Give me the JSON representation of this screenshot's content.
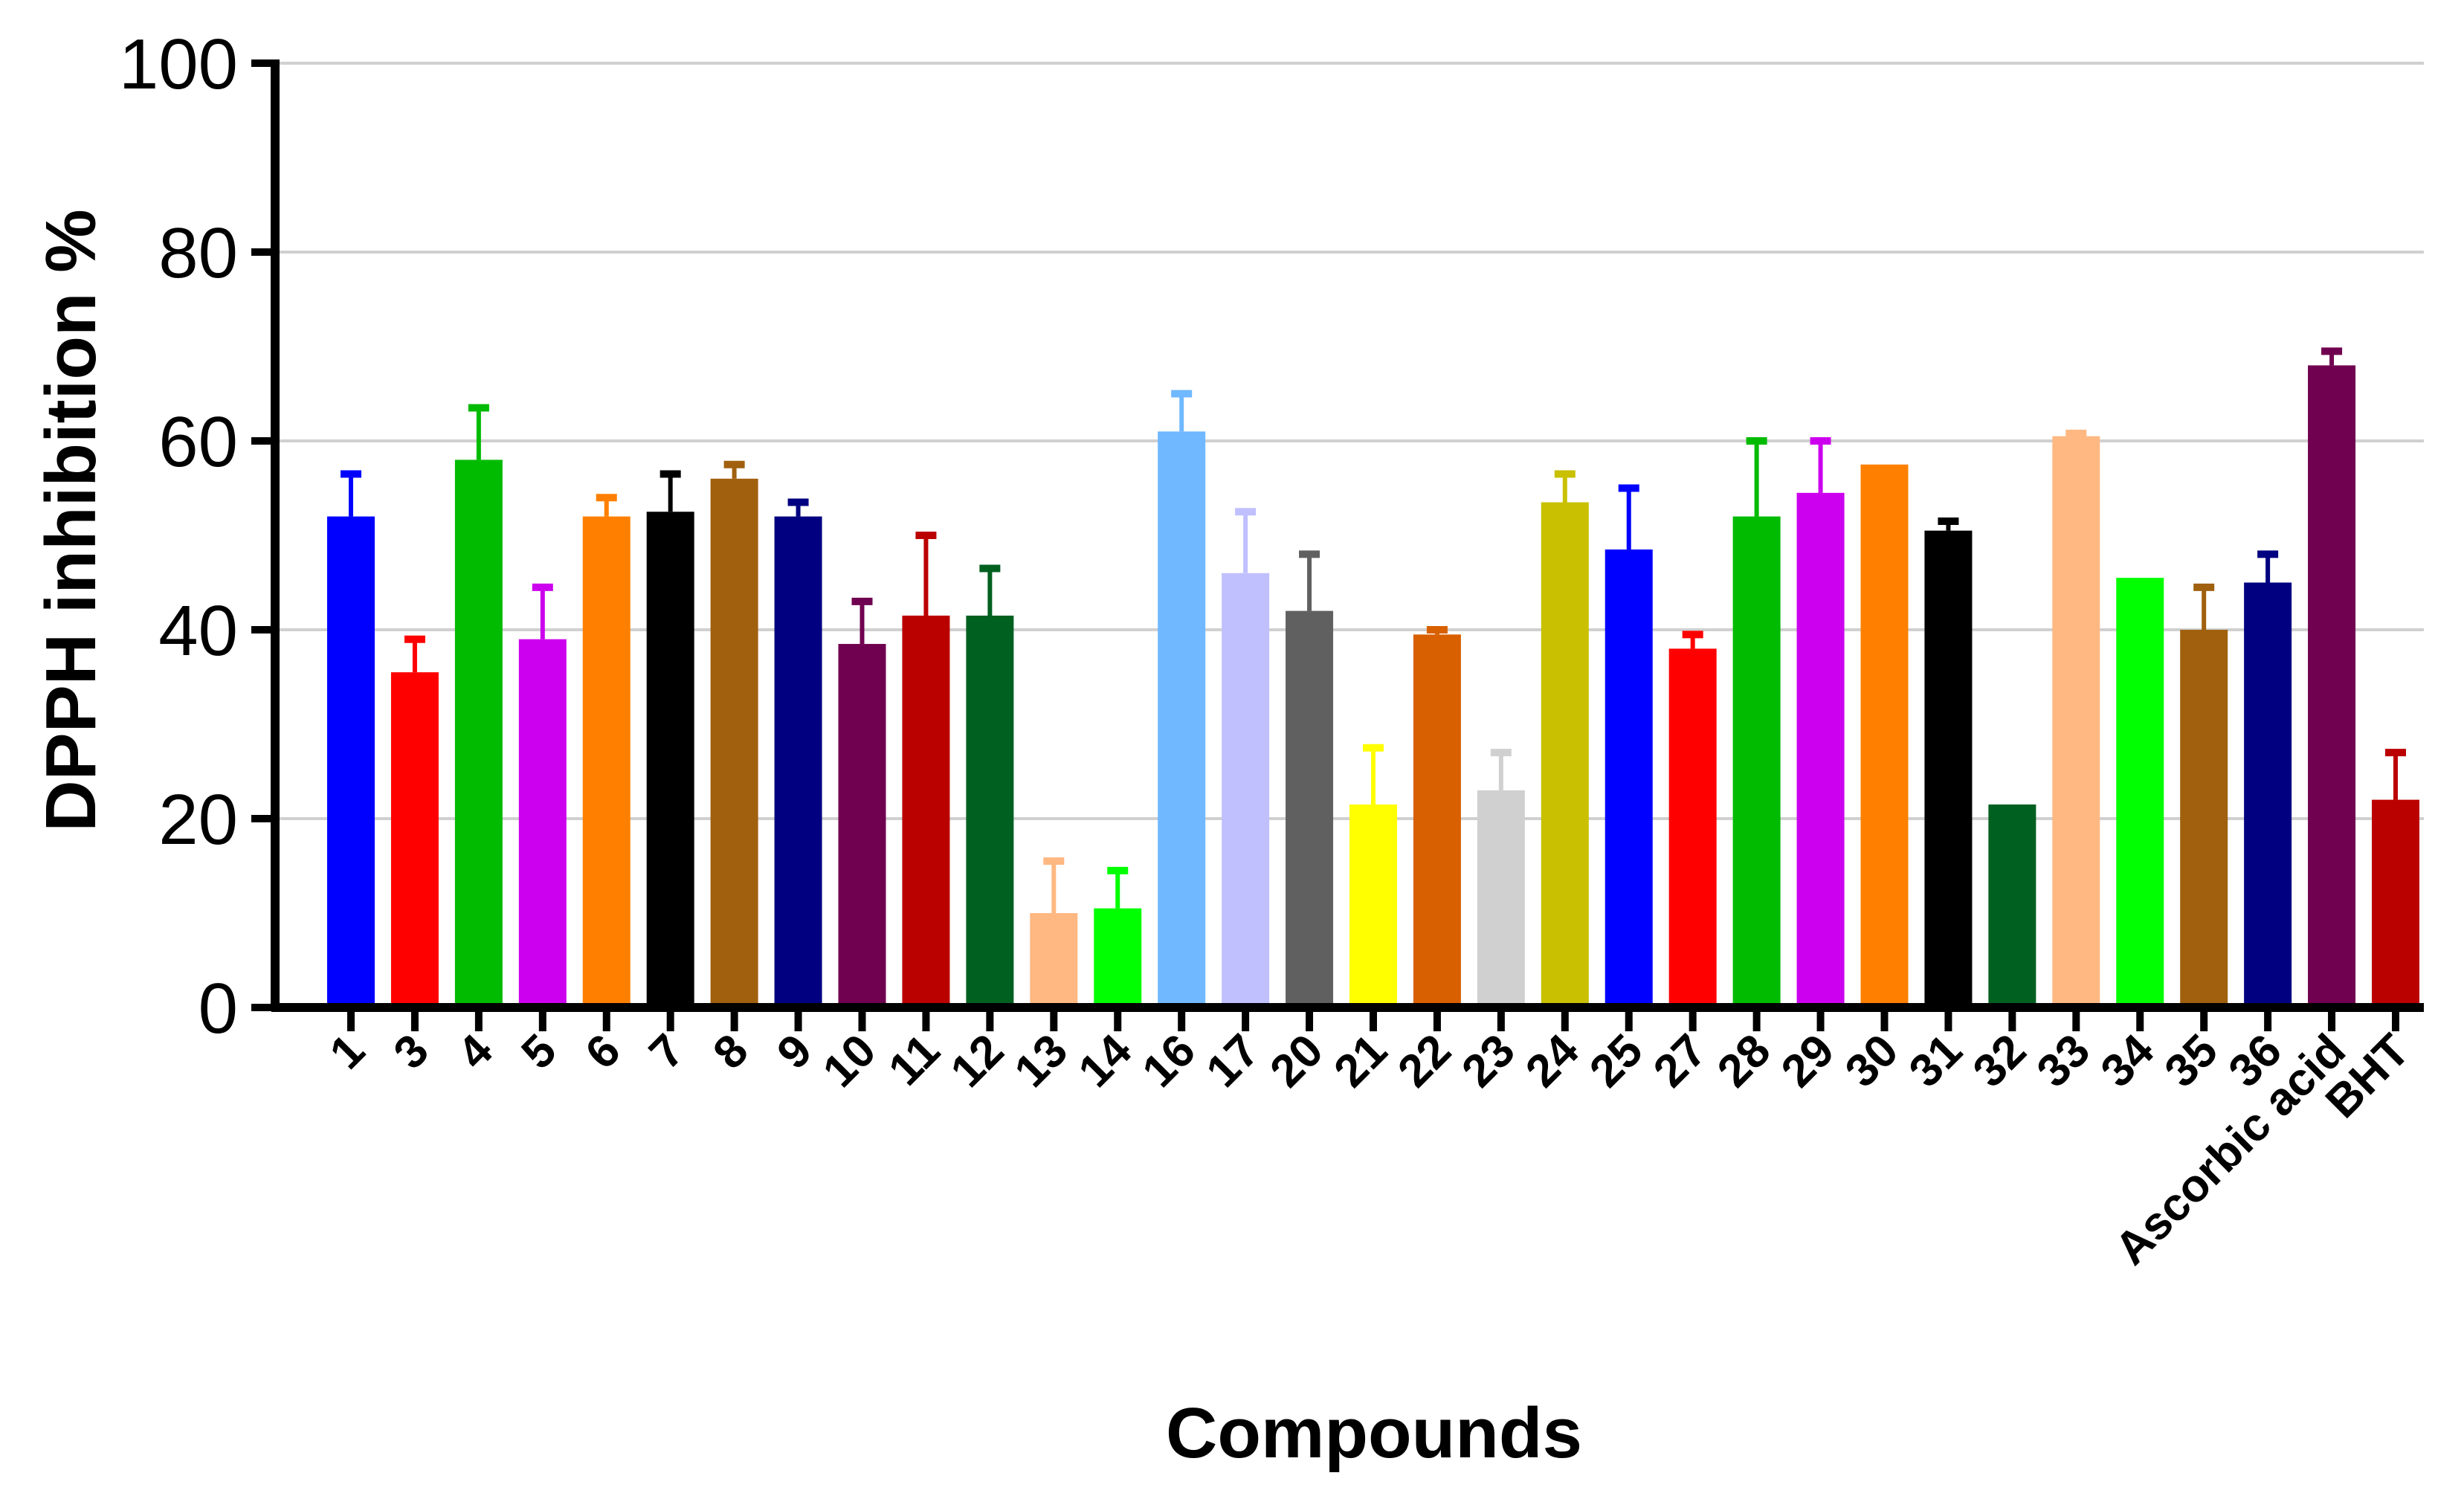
{
  "chart_data": {
    "type": "bar",
    "title": "",
    "xlabel": "Compounds",
    "ylabel": "DPPH inhibition %",
    "ylim": [
      0,
      100
    ],
    "yticks": [
      0,
      20,
      40,
      60,
      80,
      100
    ],
    "grid": true,
    "legend": "none",
    "categories": [
      "1",
      "3",
      "4",
      "5",
      "6",
      "7",
      "8",
      "9",
      "10",
      "11",
      "12",
      "13",
      "14",
      "16",
      "17",
      "20",
      "21",
      "22",
      "23",
      "24",
      "25",
      "27",
      "28",
      "29",
      "30",
      "31",
      "32",
      "33",
      "34",
      "35",
      "36",
      "Ascorbic acid",
      "BHT"
    ],
    "values": [
      52,
      35.5,
      58,
      39,
      52,
      52.5,
      56,
      52,
      38.5,
      41.5,
      41.5,
      10,
      10.5,
      61,
      46,
      42,
      21.5,
      39.5,
      23,
      53.5,
      48.5,
      38,
      52,
      54.5,
      57.5,
      50.5,
      21.5,
      60.5,
      45.5,
      40,
      45,
      68,
      22
    ],
    "errors": [
      4.5,
      3.5,
      5.5,
      5.5,
      2,
      4,
      1.5,
      1.5,
      4.5,
      8.5,
      5,
      5.5,
      4,
      4,
      6.5,
      6,
      6,
      0.5,
      4,
      3,
      6.5,
      1.5,
      8,
      5.5,
      0,
      1,
      0,
      0.3,
      0,
      4.5,
      3,
      1.5,
      5
    ],
    "colors": [
      "#0000ff",
      "#ff0000",
      "#00bb00",
      "#cc00ee",
      "#ff8000",
      "#000000",
      "#a0600e",
      "#000080",
      "#700050",
      "#bb0000",
      "#006020",
      "#ffb882",
      "#00ff00",
      "#70b8ff",
      "#c0c0ff",
      "#606060",
      "#ffff00",
      "#d86000",
      "#d0d0d0",
      "#c8c000",
      "#0000ff",
      "#ff0000",
      "#00bb00",
      "#cc00ee",
      "#ff8000",
      "#000000",
      "#006020",
      "#ffb882",
      "#00ff00",
      "#a0600e",
      "#000080",
      "#700050",
      "#bb0000"
    ]
  }
}
